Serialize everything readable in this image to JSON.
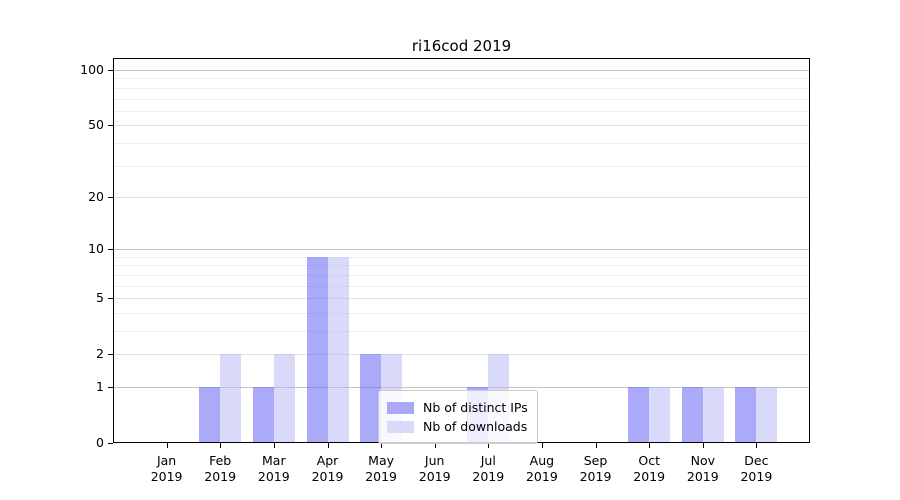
{
  "title": "ri16cod 2019",
  "chart_data": {
    "type": "bar",
    "title": "ri16cod 2019",
    "categories": [
      {
        "month": "Jan",
        "year": "2019"
      },
      {
        "month": "Feb",
        "year": "2019"
      },
      {
        "month": "Mar",
        "year": "2019"
      },
      {
        "month": "Apr",
        "year": "2019"
      },
      {
        "month": "May",
        "year": "2019"
      },
      {
        "month": "Jun",
        "year": "2019"
      },
      {
        "month": "Jul",
        "year": "2019"
      },
      {
        "month": "Aug",
        "year": "2019"
      },
      {
        "month": "Sep",
        "year": "2019"
      },
      {
        "month": "Oct",
        "year": "2019"
      },
      {
        "month": "Nov",
        "year": "2019"
      },
      {
        "month": "Dec",
        "year": "2019"
      }
    ],
    "series": [
      {
        "name": "Nb of distinct IPs",
        "color": "rgba(105,105,242,0.57)",
        "legend_color": "#a9a9f6",
        "values": [
          0,
          1,
          1,
          9,
          2,
          0,
          1,
          0,
          0,
          1,
          1,
          1
        ]
      },
      {
        "name": "Nb of downloads",
        "color": "rgba(180,180,243,0.50)",
        "legend_color": "#d9d9f8",
        "values": [
          0,
          2,
          2,
          9,
          2,
          0,
          2,
          0,
          0,
          1,
          1,
          1
        ]
      }
    ],
    "yticks": [
      0,
      1,
      2,
      5,
      10,
      20,
      50,
      100
    ],
    "yticks_major_grid": [
      1,
      10,
      100
    ],
    "yticks_mid_grid": [
      2,
      5,
      20,
      50
    ],
    "yticks_minor_grid": [
      3,
      4,
      6,
      7,
      8,
      9,
      30,
      40,
      60,
      70,
      80,
      90
    ],
    "scale": "log10(1+v)",
    "ylim": [
      0,
      115
    ],
    "xlim": [
      -1,
      12
    ],
    "grid": true,
    "legend_position": "center",
    "xlabel": "",
    "ylabel": ""
  }
}
